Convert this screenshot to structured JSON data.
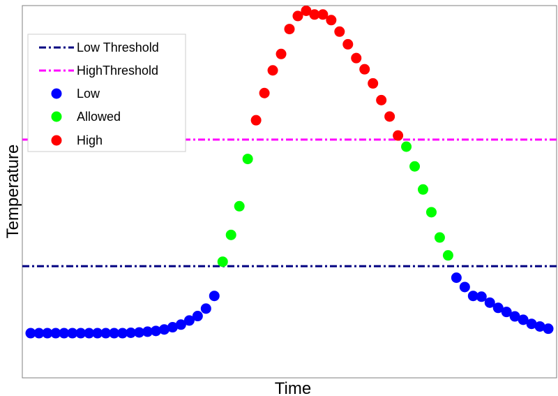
{
  "chart_data": {
    "type": "scatter",
    "title": "",
    "xlabel": "Time",
    "ylabel": "Temperature",
    "xlim": [
      -1,
      63
    ],
    "ylim": [
      0,
      100
    ],
    "grid": false,
    "xticks": false,
    "yticks": false,
    "legend_position": "top-left",
    "thresholds": [
      {
        "name": "Low Threshold",
        "y": 30,
        "color": "#000080",
        "style": "dashdot"
      },
      {
        "name": "HighThreshold",
        "y": 64,
        "color": "#ff00ff",
        "style": "dashdot"
      }
    ],
    "series": [
      {
        "name": "Low",
        "color": "#0000ff",
        "x": [
          0,
          1,
          2,
          3,
          4,
          5,
          6,
          7,
          8,
          9,
          10,
          11,
          12,
          13,
          14,
          15,
          16,
          17,
          18,
          19,
          20,
          21,
          22,
          51,
          52,
          53,
          54,
          55,
          56,
          57,
          58,
          59,
          60,
          61,
          62
        ],
        "y": [
          12.0,
          12.0,
          12.0,
          12.0,
          12.0,
          12.0,
          12.0,
          12.0,
          12.0,
          12.0,
          12.0,
          12.0,
          12.1,
          12.2,
          12.4,
          12.6,
          13.0,
          13.6,
          14.3,
          15.4,
          16.6,
          18.6,
          22.0,
          26.9,
          24.4,
          22.0,
          21.8,
          20.2,
          18.8,
          17.7,
          16.5,
          15.6,
          14.5,
          13.8,
          13.2
        ]
      },
      {
        "name": "Allowed",
        "color": "#00ff00",
        "x": [
          23,
          24,
          25,
          26,
          45,
          46,
          47,
          48,
          49,
          50
        ],
        "y": [
          31.2,
          38.4,
          46.1,
          58.8,
          62.1,
          56.8,
          50.6,
          44.5,
          37.7,
          32.9
        ]
      },
      {
        "name": "High",
        "color": "#ff0000",
        "x": [
          27,
          28,
          29,
          30,
          31,
          32,
          33,
          34,
          35,
          36,
          37,
          38,
          39,
          40,
          41,
          42,
          43,
          44
        ],
        "y": [
          69.2,
          76.5,
          82.6,
          87.0,
          93.7,
          97.2,
          98.6,
          97.6,
          97.6,
          96.1,
          93.0,
          89.6,
          85.9,
          82.9,
          79.1,
          74.6,
          70.2,
          65.1
        ]
      }
    ]
  }
}
